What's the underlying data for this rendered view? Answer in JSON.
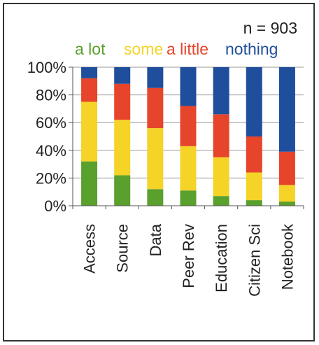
{
  "chart_data": {
    "type": "bar",
    "stacked": true,
    "annotation": "n = 903",
    "categories": [
      "Access",
      "Source",
      "Data",
      "Peer Rev",
      "Education",
      "Citizen Sci",
      "Notebook"
    ],
    "series": [
      {
        "name": "a lot",
        "color": "#5aa02c",
        "values": [
          32,
          22,
          12,
          11,
          7,
          4,
          3
        ]
      },
      {
        "name": "some",
        "color": "#f5d327",
        "values": [
          43,
          40,
          44,
          32,
          28,
          20,
          12
        ]
      },
      {
        "name": "a little",
        "color": "#e6452b",
        "values": [
          17,
          26,
          29,
          29,
          31,
          26,
          24
        ]
      },
      {
        "name": "nothing",
        "color": "#1f4e9c",
        "values": [
          8,
          12,
          15,
          28,
          34,
          50,
          61
        ]
      }
    ],
    "yticks": [
      "0%",
      "20%",
      "40%",
      "60%",
      "80%",
      "100%"
    ],
    "ylim": [
      0,
      100
    ],
    "grid": true,
    "legend_position": "top"
  }
}
